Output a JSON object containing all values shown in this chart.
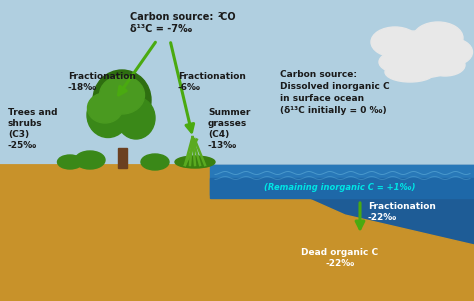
{
  "bg_sky_color": "#b0cfe0",
  "bg_soil_color": "#c8922a",
  "bg_ocean_dark": "#1e5c96",
  "bg_ocean_mid": "#2878b8",
  "remaining_band_color": "#2272b0",
  "remaining_text_color": "#00e5e5",
  "arrow_color": "#4aaa10",
  "text_dark": "#1a1a1a",
  "text_white": "#ffffff",
  "cloud_color": "#e8e8e8",
  "tree_trunk_color": "#6b4020",
  "tree_dark": "#2e6e10",
  "tree_mid": "#3a8818",
  "tree_light": "#4a9a20",
  "grass_color": "#5aaa20",
  "title_co2_line1": "Carbon source:  CO",
  "title_co2_line2": "δ¹³C = -7‰",
  "label_frac_left_l1": "Fractionation",
  "label_frac_left_l2": "-18‰",
  "label_frac_right_l1": "Fractionation",
  "label_frac_right_l2": "-6‰",
  "label_trees_l1": "Trees and",
  "label_trees_l2": "shrubs",
  "label_trees_l3": "(C3)",
  "label_trees_l4": "-25‰",
  "label_grasses_l1": "Summer",
  "label_grasses_l2": "grasses",
  "label_grasses_l3": "(C4)",
  "label_grasses_l4": "-13‰",
  "label_carbon_ocean_l1": "Carbon source:",
  "label_carbon_ocean_l2": "Dissolved inorganic C",
  "label_carbon_ocean_l3": "in surface ocean",
  "label_carbon_ocean_l4": "(δ¹³C initially = 0 ‰)",
  "label_remaining": "(Remaining inorganic C = +1‰)",
  "label_frac_ocean_l1": "Fractionation",
  "label_frac_ocean_l2": "-22‰",
  "label_dead_l1": "Dead organic C",
  "label_dead_l2": "-22‰",
  "figsize": [
    4.74,
    3.01
  ],
  "dpi": 100
}
